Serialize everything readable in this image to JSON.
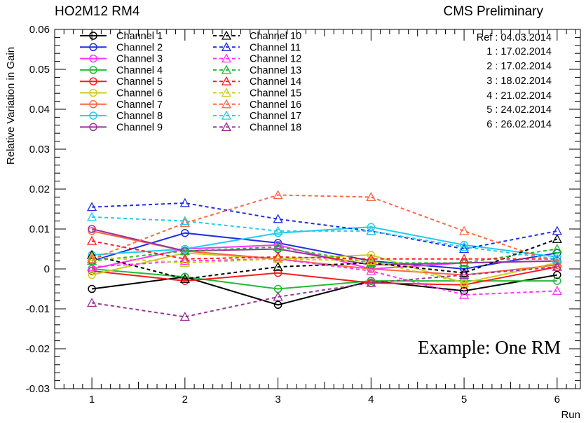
{
  "header": {
    "left_title": "HO2M12 RM4",
    "right_title": "CMS Preliminary"
  },
  "reference_dates": [
    "Ref : 04.03.2014",
    "1 : 17.02.2014",
    "2 : 17.02.2014",
    "3 : 18.02.2014",
    "4 : 21.02.2014",
    "5 : 24.02.2014",
    "6 : 26.02.2014"
  ],
  "annotation": "Example: One RM",
  "chart_data": {
    "type": "line",
    "title": "HO2M12 RM4",
    "xlabel": "Run",
    "ylabel": "Relative Variation in Gain",
    "xlim": [
      0.6,
      6.25
    ],
    "ylim": [
      -0.03,
      0.06
    ],
    "x": [
      1,
      2,
      3,
      4,
      5,
      6
    ],
    "x_ticks": [
      "1",
      "2",
      "3",
      "4",
      "5",
      "6"
    ],
    "y_ticks": [
      -0.03,
      -0.02,
      -0.01,
      0,
      0.01,
      0.02,
      0.03,
      0.04,
      0.05,
      0.06
    ],
    "y_tick_labels": [
      "-0.03",
      "-0.02",
      "-0.01",
      "0",
      "0.01",
      "0.02",
      "0.03",
      "0.04",
      "0.05",
      "0.06"
    ],
    "legend_position": "top-left",
    "series": [
      {
        "name": "Channel 1",
        "color": "#000000",
        "marker": "circle",
        "dashed": false,
        "values": [
          -0.005,
          -0.002,
          -0.009,
          -0.003,
          -0.0055,
          -0.0015
        ]
      },
      {
        "name": "Channel 2",
        "color": "#1f2fe0",
        "marker": "circle",
        "dashed": false,
        "values": [
          0.002,
          0.009,
          0.0065,
          0.002,
          0.0,
          0.004
        ]
      },
      {
        "name": "Channel 3",
        "color": "#ff33ff",
        "marker": "circle",
        "dashed": false,
        "values": [
          0.0,
          0.005,
          0.006,
          0.0,
          0.0015,
          0.002
        ]
      },
      {
        "name": "Channel 4",
        "color": "#22bb33",
        "marker": "circle",
        "dashed": false,
        "values": [
          0.0,
          -0.002,
          -0.005,
          -0.003,
          -0.003,
          -0.003
        ]
      },
      {
        "name": "Channel 5",
        "color": "#ff1a1a",
        "marker": "circle",
        "dashed": false,
        "values": [
          -0.0005,
          -0.003,
          -0.001,
          -0.0035,
          -0.004,
          0.0005
        ]
      },
      {
        "name": "Channel 6",
        "color": "#cccc22",
        "marker": "circle",
        "dashed": false,
        "values": [
          -0.0015,
          0.004,
          0.0025,
          0.0035,
          -0.0035,
          0.0015
        ]
      },
      {
        "name": "Channel 7",
        "color": "#ff6644",
        "marker": "circle",
        "dashed": false,
        "values": [
          0.0095,
          0.0045,
          0.0025,
          0.0,
          -0.0015,
          0.001
        ]
      },
      {
        "name": "Channel 8",
        "color": "#22ccee",
        "marker": "circle",
        "dashed": false,
        "values": [
          0.0035,
          0.005,
          0.009,
          0.0105,
          0.006,
          0.003
        ]
      },
      {
        "name": "Channel 9",
        "color": "#993399",
        "marker": "circle",
        "dashed": false,
        "values": [
          0.01,
          0.0045,
          0.005,
          0.001,
          0.0015,
          0.002
        ]
      },
      {
        "name": "Channel 10",
        "color": "#000000",
        "marker": "triangle",
        "dashed": true,
        "values": [
          0.0035,
          -0.0025,
          0.0005,
          0.0015,
          -0.001,
          0.0075
        ]
      },
      {
        "name": "Channel 11",
        "color": "#1f2fe0",
        "marker": "triangle",
        "dashed": true,
        "values": [
          0.0155,
          0.0165,
          0.0125,
          0.0095,
          0.005,
          0.0095
        ]
      },
      {
        "name": "Channel 12",
        "color": "#ff33ff",
        "marker": "triangle",
        "dashed": true,
        "values": [
          0.0005,
          0.002,
          0.0025,
          -0.0005,
          -0.0065,
          -0.0055
        ]
      },
      {
        "name": "Channel 13",
        "color": "#22bb33",
        "marker": "triangle",
        "dashed": true,
        "values": [
          0.002,
          0.0045,
          0.0055,
          0.0015,
          0.0015,
          0.005
        ]
      },
      {
        "name": "Channel 14",
        "color": "#ff1a1a",
        "marker": "triangle",
        "dashed": true,
        "values": [
          0.007,
          0.0025,
          0.003,
          0.0025,
          0.0025,
          0.0025
        ]
      },
      {
        "name": "Channel 15",
        "color": "#cccc22",
        "marker": "triangle",
        "dashed": true,
        "values": [
          0.003,
          0.0015,
          0.0025,
          0.002,
          -0.0035,
          0.0015
        ]
      },
      {
        "name": "Channel 16",
        "color": "#ff6644",
        "marker": "triangle",
        "dashed": true,
        "values": [
          0.0025,
          0.0115,
          0.0185,
          0.018,
          0.0095,
          0.0015
        ]
      },
      {
        "name": "Channel 17",
        "color": "#22ccee",
        "marker": "triangle",
        "dashed": true,
        "values": [
          0.013,
          0.012,
          0.0095,
          0.0095,
          0.0055,
          0.0025
        ]
      },
      {
        "name": "Channel 18",
        "color": "#993399",
        "marker": "triangle",
        "dashed": true,
        "values": [
          -0.0085,
          -0.012,
          -0.007,
          -0.0035,
          -0.0015,
          0.0005
        ]
      }
    ]
  }
}
